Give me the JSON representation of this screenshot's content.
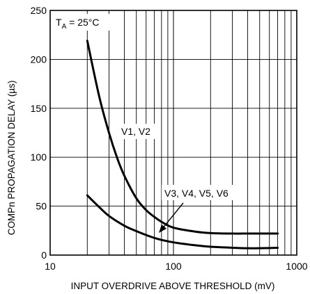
{
  "chart_data": {
    "type": "line",
    "title": "",
    "xlabel": "INPUT OVERDRIVE ABOVE THRESHOLD (mV)",
    "ylabel": "COMPn PROPAGATION DELAY (µs)",
    "x_scale": "log",
    "xlim": [
      10,
      1000
    ],
    "ylim": [
      0,
      250
    ],
    "grid": true,
    "x_ticks": [
      {
        "value": 10,
        "label": "10"
      },
      {
        "value": 100,
        "label": "100"
      },
      {
        "value": 1000,
        "label": "1000"
      }
    ],
    "y_ticks": [
      {
        "value": 0,
        "label": "0"
      },
      {
        "value": 50,
        "label": "50"
      },
      {
        "value": 100,
        "label": "100"
      },
      {
        "value": 150,
        "label": "150"
      },
      {
        "value": 200,
        "label": "200"
      },
      {
        "value": 250,
        "label": "250"
      }
    ],
    "series": [
      {
        "name": "V1, V2",
        "x": [
          20,
          25,
          30,
          35,
          40,
          50,
          60,
          70,
          80,
          100,
          150,
          200,
          300,
          400,
          500,
          700
        ],
        "y": [
          219,
          162,
          125,
          99,
          81,
          58,
          46,
          39,
          34,
          28,
          24,
          22.5,
          22,
          22,
          22,
          22
        ]
      },
      {
        "name": "V3, V4, V5, V6",
        "x": [
          20,
          25,
          30,
          40,
          50,
          60,
          70,
          80,
          100,
          150,
          200,
          300,
          400,
          500,
          700
        ],
        "y": [
          61,
          49,
          40,
          30,
          24.5,
          20.5,
          17.5,
          15.5,
          13,
          10,
          8.5,
          7.5,
          7,
          7,
          7.5
        ]
      }
    ],
    "annotations": [
      {
        "text_main": "T",
        "text_sub": "A",
        "text_rest": " = 25°C"
      },
      {
        "text": "V1, V2"
      },
      {
        "text": "V3, V4, V5, V6"
      }
    ]
  }
}
